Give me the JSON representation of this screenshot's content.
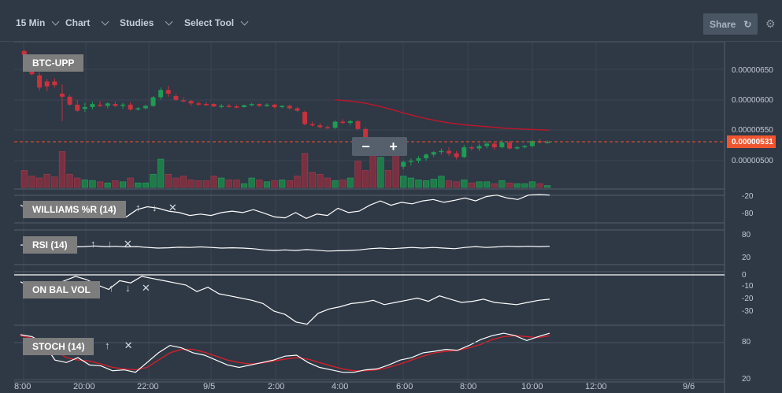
{
  "toolbar": {
    "interval": "15 Min",
    "chart": "Chart",
    "studies": "Studies",
    "select_tool": "Select Tool",
    "share": "Share"
  },
  "panes": {
    "price": {
      "label": "BTC-UPP"
    },
    "williams": {
      "label": "WILLIAMS %R (14)"
    },
    "rsi": {
      "label": "RSI (14)"
    },
    "obv": {
      "label": "ON BAL VOL"
    },
    "stoch": {
      "label": "STOCH (14)"
    }
  },
  "price_axis": [
    "0.00000650",
    "0.00000600",
    "0.00000550",
    "0.00000500"
  ],
  "last_price": "0.00000531",
  "williams_axis": [
    "-20",
    "-80"
  ],
  "rsi_axis": [
    "80",
    "20"
  ],
  "obv_axis": [
    "0",
    "-10",
    "-20",
    "-30"
  ],
  "stoch_axis": [
    "80",
    "20"
  ],
  "time_axis": [
    "8:00",
    "20:00",
    "22:00",
    "9/5",
    "2:00",
    "4:00",
    "6:00",
    "8:00",
    "10:00",
    "12:00",
    "9/6"
  ],
  "colors": {
    "bg": "#2f3845",
    "up": "#1f9b55",
    "down": "#c8323d",
    "ma": "#c0162a",
    "last": "#f0552f"
  },
  "chart_data": {
    "type": "candlestick",
    "candles": [
      [
        6.8,
        6.82,
        6.72,
        6.74
      ],
      [
        6.66,
        6.7,
        6.4,
        6.42
      ],
      [
        6.4,
        6.45,
        6.15,
        6.2
      ],
      [
        6.3,
        6.34,
        6.14,
        6.22
      ],
      [
        6.3,
        6.35,
        6.2,
        6.24
      ],
      [
        6.1,
        6.25,
        5.65,
        6.05
      ],
      [
        6.05,
        6.08,
        5.9,
        5.92
      ],
      [
        5.92,
        6.0,
        5.8,
        5.82
      ],
      [
        5.85,
        5.95,
        5.8,
        5.88
      ],
      [
        5.88,
        5.97,
        5.84,
        5.93
      ],
      [
        5.92,
        5.98,
        5.88,
        5.9
      ],
      [
        5.9,
        5.96,
        5.86,
        5.94
      ],
      [
        5.93,
        5.97,
        5.88,
        5.9
      ],
      [
        5.9,
        5.95,
        5.85,
        5.92
      ],
      [
        5.92,
        5.96,
        5.82,
        5.84
      ],
      [
        5.84,
        5.88,
        5.82,
        5.86
      ],
      [
        5.86,
        5.92,
        5.84,
        5.9
      ],
      [
        5.9,
        6.06,
        5.88,
        6.04
      ],
      [
        6.04,
        6.2,
        6.0,
        6.16
      ],
      [
        6.16,
        6.23,
        6.05,
        6.1
      ],
      [
        6.06,
        6.1,
        5.98,
        6.0
      ],
      [
        5.99,
        6.04,
        5.96,
        5.98
      ],
      [
        5.98,
        6.0,
        5.9,
        5.94
      ],
      [
        5.94,
        5.97,
        5.9,
        5.93
      ],
      [
        5.93,
        5.96,
        5.9,
        5.92
      ],
      [
        5.93,
        5.95,
        5.88,
        5.89
      ],
      [
        5.89,
        5.93,
        5.86,
        5.9
      ],
      [
        5.9,
        5.93,
        5.87,
        5.89
      ],
      [
        5.89,
        5.92,
        5.86,
        5.88
      ],
      [
        5.88,
        5.92,
        5.87,
        5.91
      ],
      [
        5.91,
        5.95,
        5.89,
        5.93
      ],
      [
        5.93,
        5.94,
        5.88,
        5.9
      ],
      [
        5.9,
        5.94,
        5.88,
        5.92
      ],
      [
        5.92,
        5.93,
        5.86,
        5.88
      ],
      [
        5.88,
        5.91,
        5.86,
        5.9
      ],
      [
        5.9,
        5.92,
        5.84,
        5.86
      ],
      [
        5.86,
        5.88,
        5.8,
        5.82
      ],
      [
        5.8,
        5.82,
        5.58,
        5.6
      ],
      [
        5.6,
        5.64,
        5.56,
        5.58
      ],
      [
        5.58,
        5.62,
        5.53,
        5.55
      ],
      [
        5.55,
        5.58,
        5.52,
        5.54
      ],
      [
        5.54,
        5.66,
        5.52,
        5.64
      ],
      [
        5.64,
        5.68,
        5.6,
        5.62
      ],
      [
        5.62,
        5.67,
        5.58,
        5.65
      ],
      [
        5.65,
        5.66,
        5.5,
        5.52
      ],
      [
        5.52,
        5.55,
        5.3,
        5.34
      ],
      [
        5.34,
        5.36,
        5.1,
        5.16
      ],
      [
        5.16,
        5.33,
        5.12,
        5.3
      ],
      [
        5.3,
        5.34,
        5.2,
        5.24
      ],
      [
        5.24,
        5.28,
        4.8,
        4.9
      ],
      [
        4.9,
        5.0,
        4.86,
        4.98
      ],
      [
        4.98,
        5.04,
        4.92,
        5.0
      ],
      [
        5.0,
        5.08,
        4.96,
        5.04
      ],
      [
        5.04,
        5.12,
        5.0,
        5.1
      ],
      [
        5.1,
        5.16,
        5.06,
        5.14
      ],
      [
        5.14,
        5.2,
        5.1,
        5.16
      ],
      [
        5.16,
        5.22,
        5.08,
        5.12
      ],
      [
        5.12,
        5.16,
        5.02,
        5.06
      ],
      [
        5.06,
        5.26,
        5.04,
        5.22
      ],
      [
        5.22,
        5.25,
        5.16,
        5.2
      ],
      [
        5.2,
        5.28,
        5.16,
        5.24
      ],
      [
        5.24,
        5.32,
        5.2,
        5.28
      ],
      [
        5.28,
        5.3,
        5.18,
        5.22
      ],
      [
        5.22,
        5.34,
        5.2,
        5.3
      ],
      [
        5.3,
        5.33,
        5.18,
        5.2
      ],
      [
        5.2,
        5.24,
        5.18,
        5.22
      ],
      [
        5.22,
        5.26,
        5.2,
        5.24
      ],
      [
        5.24,
        5.34,
        5.22,
        5.32
      ],
      [
        5.32,
        5.36,
        5.28,
        5.3
      ],
      [
        5.3,
        5.33,
        5.28,
        5.31
      ]
    ],
    "volumes": [
      0.45,
      0.3,
      0.25,
      0.35,
      0.28,
      0.95,
      0.35,
      0.25,
      0.2,
      0.18,
      0.15,
      0.12,
      0.18,
      0.15,
      0.25,
      0.12,
      0.12,
      0.35,
      0.75,
      0.35,
      0.25,
      0.3,
      0.2,
      0.18,
      0.18,
      0.3,
      0.25,
      0.2,
      0.2,
      0.1,
      0.25,
      0.2,
      0.15,
      0.18,
      0.2,
      0.18,
      0.3,
      0.9,
      0.4,
      0.35,
      0.25,
      0.18,
      0.2,
      0.25,
      0.7,
      0.45,
      0.95,
      0.8,
      0.45,
      0.85,
      0.3,
      0.25,
      0.2,
      0.18,
      0.22,
      0.3,
      0.18,
      0.15,
      0.2,
      0.12,
      0.15,
      0.15,
      0.1,
      0.18,
      0.12,
      0.1,
      0.1,
      0.15,
      0.1,
      0.05
    ],
    "ma": [
      6.0,
      5.98,
      5.95,
      5.9,
      5.84,
      5.77,
      5.71,
      5.66,
      5.62,
      5.59,
      5.57,
      5.55,
      5.53,
      5.52,
      5.51,
      5.5
    ],
    "williams": [
      -45,
      -60,
      -70,
      -75,
      -80,
      -65,
      -60,
      -55,
      -75,
      -70,
      -85,
      -60,
      -50,
      -55,
      -65,
      -70,
      -80,
      -75,
      -80,
      -70,
      -65,
      -70,
      -60,
      -72,
      -85,
      -88,
      -70,
      -90,
      -75,
      -80,
      -55,
      -70,
      -65,
      -45,
      -30,
      -45,
      -35,
      -40,
      -30,
      -25,
      -35,
      -28,
      -20,
      -30,
      -15,
      -10,
      -20,
      -25,
      -10,
      -8,
      -10
    ],
    "rsi": [
      60,
      62,
      58,
      55,
      56,
      54,
      55,
      57,
      55,
      56,
      54,
      55,
      52,
      50,
      51,
      53,
      52,
      54,
      52,
      50,
      51,
      50,
      48,
      44,
      42,
      44,
      42,
      45,
      43,
      40,
      41,
      42,
      44,
      48,
      50,
      48,
      50,
      52,
      50,
      52,
      50,
      48,
      52,
      55,
      52,
      54,
      56,
      55,
      56,
      55,
      56
    ],
    "obv": [
      -5,
      -10,
      -15,
      -8,
      -4,
      0,
      -3,
      -8,
      -12,
      -4,
      -6,
      0,
      -2,
      -4,
      -6,
      -8,
      -14,
      -10,
      -16,
      -18,
      -20,
      -22,
      -25,
      -32,
      -35,
      -42,
      -44,
      -34,
      -30,
      -28,
      -25,
      -24,
      -22,
      -26,
      -24,
      -22,
      -20,
      -23,
      -18,
      -21,
      -24,
      -23,
      -21,
      -24,
      -25,
      -26,
      -24,
      -22,
      -21
    ],
    "stoch_k": [
      92,
      88,
      75,
      40,
      35,
      45,
      30,
      28,
      18,
      20,
      15,
      35,
      55,
      70,
      65,
      55,
      50,
      40,
      30,
      25,
      30,
      35,
      40,
      48,
      50,
      35,
      25,
      20,
      15,
      15,
      20,
      22,
      30,
      40,
      45,
      55,
      58,
      62,
      60,
      70,
      82,
      90,
      95,
      90,
      80,
      88,
      95
    ],
    "stoch_d": [
      90,
      85,
      80,
      60,
      45,
      40,
      38,
      32,
      25,
      22,
      20,
      25,
      40,
      55,
      62,
      62,
      56,
      48,
      40,
      35,
      32,
      34,
      38,
      42,
      45,
      42,
      35,
      28,
      22,
      18,
      18,
      20,
      25,
      32,
      40,
      48,
      55,
      58,
      60,
      65,
      72,
      82,
      88,
      90,
      88,
      86,
      90
    ]
  }
}
